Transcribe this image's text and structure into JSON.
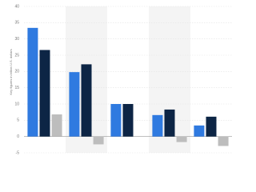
{
  "chart_data": {
    "type": "bar",
    "y_label": "Key figures in billion U.S. dollars",
    "categories": [
      null,
      null,
      null,
      null,
      null
    ],
    "series": [
      {
        "color": "#2f7ae0",
        "values": [
          33.4,
          19.8,
          10,
          6.6,
          3.4
        ]
      },
      {
        "color": "#0d2545",
        "values": [
          26.6,
          22.2,
          10,
          8.3,
          6.1
        ]
      },
      {
        "color": "#bdbdbd",
        "values": [
          6.8,
          -2.4,
          null,
          -1.7,
          -2.9
        ]
      }
    ],
    "ylim": [
      -5,
      40
    ],
    "yticks": [
      -5,
      0,
      5,
      10,
      15,
      20,
      25,
      30,
      35,
      40
    ],
    "grid": true,
    "band_shading": "#f4f4f4"
  }
}
